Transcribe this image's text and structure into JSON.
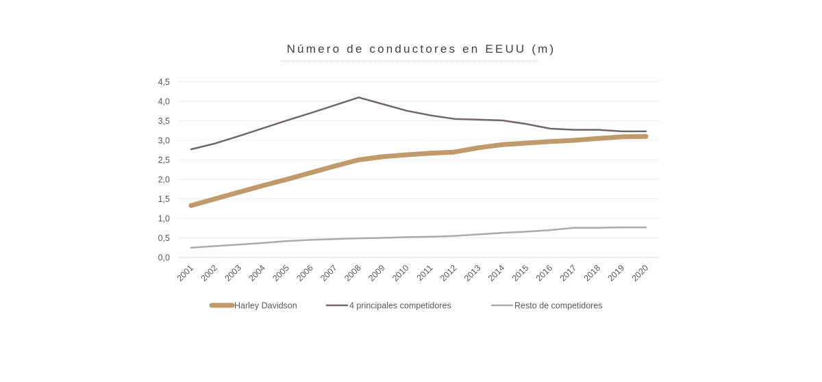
{
  "chart_data": {
    "type": "line",
    "title": "Número de conductores en EEUU (m)",
    "xlabel": "",
    "ylabel": "",
    "ylim": [
      0,
      4.5
    ],
    "y_ticks": [
      "0,0",
      "0,5",
      "1,0",
      "1,5",
      "2,0",
      "2,5",
      "3,0",
      "3,5",
      "4,0",
      "4,5"
    ],
    "y_tick_values": [
      0,
      0.5,
      1.0,
      1.5,
      2.0,
      2.5,
      3.0,
      3.5,
      4.0,
      4.5
    ],
    "categories": [
      "2001",
      "2002",
      "2003",
      "2004",
      "2005",
      "2006",
      "2007",
      "2008",
      "2009",
      "2010",
      "2011",
      "2012",
      "2013",
      "2014",
      "2015",
      "2016",
      "2017",
      "2018",
      "2019",
      "2020"
    ],
    "grid": true,
    "legend_position": "bottom",
    "series": [
      {
        "name": "Harley Davidson",
        "color": "#c09a6b",
        "values": [
          1.33,
          1.5,
          1.67,
          1.84,
          2.0,
          2.17,
          2.34,
          2.5,
          2.58,
          2.63,
          2.67,
          2.7,
          2.81,
          2.89,
          2.93,
          2.97,
          3.0,
          3.05,
          3.09,
          3.1
        ]
      },
      {
        "name": "4 principales competidores",
        "color": "#6e6868",
        "values": [
          2.77,
          2.92,
          3.11,
          3.31,
          3.51,
          3.7,
          3.9,
          4.1,
          3.93,
          3.76,
          3.64,
          3.55,
          3.53,
          3.51,
          3.42,
          3.3,
          3.27,
          3.27,
          3.23,
          3.23
        ]
      },
      {
        "name": "Resto de competidores",
        "color": "#ababab",
        "values": [
          0.25,
          0.29,
          0.33,
          0.37,
          0.42,
          0.45,
          0.47,
          0.49,
          0.5,
          0.52,
          0.53,
          0.55,
          0.59,
          0.63,
          0.66,
          0.7,
          0.76,
          0.76,
          0.77,
          0.77
        ]
      }
    ]
  }
}
